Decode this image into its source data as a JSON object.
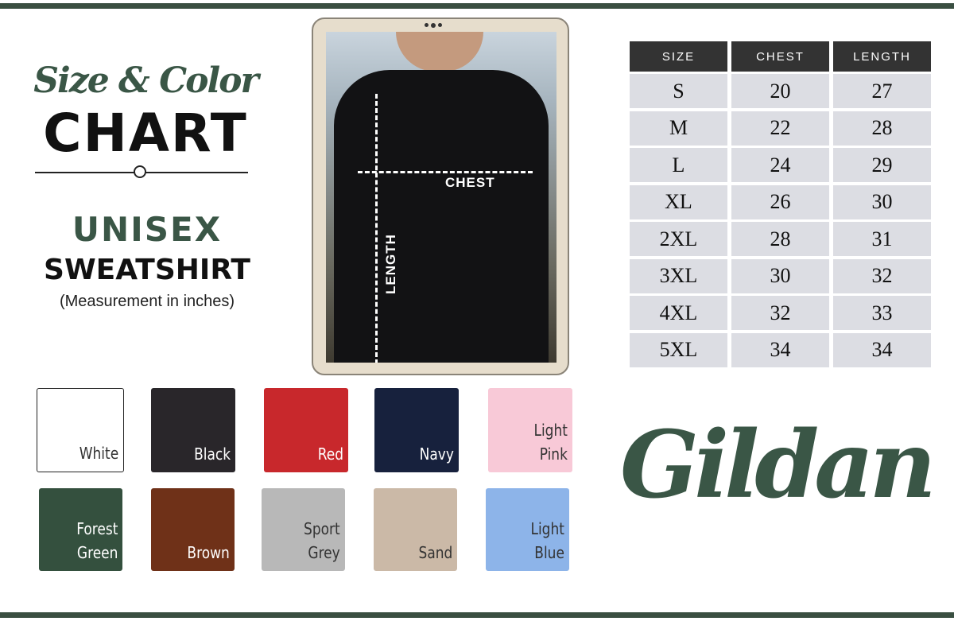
{
  "header": {
    "script_title": "Size & Color",
    "main_title": "CHART",
    "product_line": "UNISEX",
    "product": "SWEATSHIRT",
    "unit_note": "(Measurement in inches)"
  },
  "diagram": {
    "chest_label": "CHEST",
    "length_label": "LENGTH"
  },
  "size_table": {
    "columns": [
      "SIZE",
      "CHEST",
      "LENGTH"
    ],
    "rows": [
      [
        "S",
        "20",
        "27"
      ],
      [
        "M",
        "22",
        "28"
      ],
      [
        "L",
        "24",
        "29"
      ],
      [
        "XL",
        "26",
        "30"
      ],
      [
        "2XL",
        "28",
        "31"
      ],
      [
        "3XL",
        "30",
        "32"
      ],
      [
        "4XL",
        "32",
        "33"
      ],
      [
        "5XL",
        "34",
        "34"
      ]
    ]
  },
  "swatches": [
    {
      "name": "White",
      "color": "#ffffff",
      "text_color": "#333333"
    },
    {
      "name": "Black",
      "color": "#29262a",
      "text_color": "#ffffff"
    },
    {
      "name": "Red",
      "color": "#c8282c",
      "text_color": "#ffffff"
    },
    {
      "name": "Navy",
      "color": "#17213d",
      "text_color": "#ffffff"
    },
    {
      "name": "Light\nPink",
      "color": "#f8c9d7",
      "text_color": "#333333"
    },
    {
      "name": "Forest\nGreen",
      "color": "#34503e",
      "text_color": "#ffffff"
    },
    {
      "name": "Brown",
      "color": "#6f3118",
      "text_color": "#ffffff"
    },
    {
      "name": "Sport\nGrey",
      "color": "#b8b8b8",
      "text_color": "#333333"
    },
    {
      "name": "Sand",
      "color": "#cbb9a7",
      "text_color": "#333333"
    },
    {
      "name": "Light\nBlue",
      "color": "#8db4e9",
      "text_color": "#333333"
    }
  ],
  "brand": "Gildan",
  "colors": {
    "accent_green": "#3a5646",
    "table_header": "#333333",
    "table_cell": "#dcdde3"
  }
}
